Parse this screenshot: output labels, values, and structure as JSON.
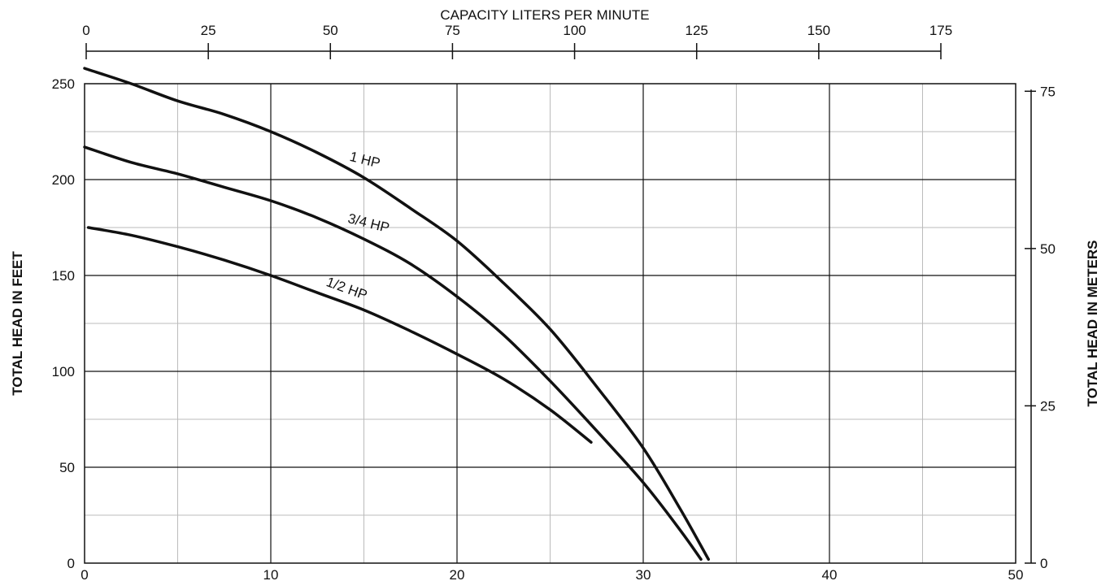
{
  "chart_data": {
    "type": "line",
    "xlabel": "",
    "ylabel": "TOTAL HEAD IN FEET",
    "xlim": [
      0,
      50
    ],
    "ylim": [
      0,
      250
    ],
    "x_ticks": [
      0,
      10,
      20,
      30,
      40,
      50
    ],
    "y_ticks": [
      0,
      50,
      100,
      150,
      200,
      250
    ],
    "x_minor_step": 5,
    "y_minor_step": 25,
    "grid": true,
    "colors": {
      "curve": "#111111",
      "major_grid": "#111111",
      "minor_grid": "#bbbbbb"
    },
    "top_axis": {
      "label": "CAPACITY LITERS PER MINUTE",
      "ticks": [
        0,
        25,
        50,
        75,
        100,
        125,
        150,
        175
      ]
    },
    "right_axis": {
      "label": "TOTAL HEAD IN METERS",
      "ticks": [
        0,
        25,
        50,
        75
      ]
    },
    "series": [
      {
        "name": "1 HP",
        "x": [
          0,
          2.5,
          5,
          7.5,
          10,
          12.5,
          15,
          17.5,
          20,
          22.5,
          25,
          27.5,
          30,
          32,
          33.5
        ],
        "y": [
          258,
          250,
          241,
          234,
          225,
          214,
          201,
          185,
          168,
          146,
          122,
          92,
          60,
          28,
          2
        ]
      },
      {
        "name": "3/4 HP",
        "x": [
          0,
          2.5,
          5,
          7.5,
          10,
          12.5,
          15,
          17.5,
          20,
          22.5,
          25,
          27.5,
          30,
          32,
          33.1
        ],
        "y": [
          217,
          209,
          203,
          196,
          189,
          180,
          169,
          156,
          139,
          119,
          95,
          69,
          42,
          17,
          2
        ]
      },
      {
        "name": "1/2 HP",
        "x": [
          0.2,
          2.5,
          5,
          7.5,
          10,
          12.5,
          15,
          17.5,
          20,
          22.5,
          25,
          27.2
        ],
        "y": [
          175,
          171,
          165,
          158,
          150,
          141,
          132,
          121,
          109,
          96,
          80,
          63
        ]
      }
    ]
  }
}
